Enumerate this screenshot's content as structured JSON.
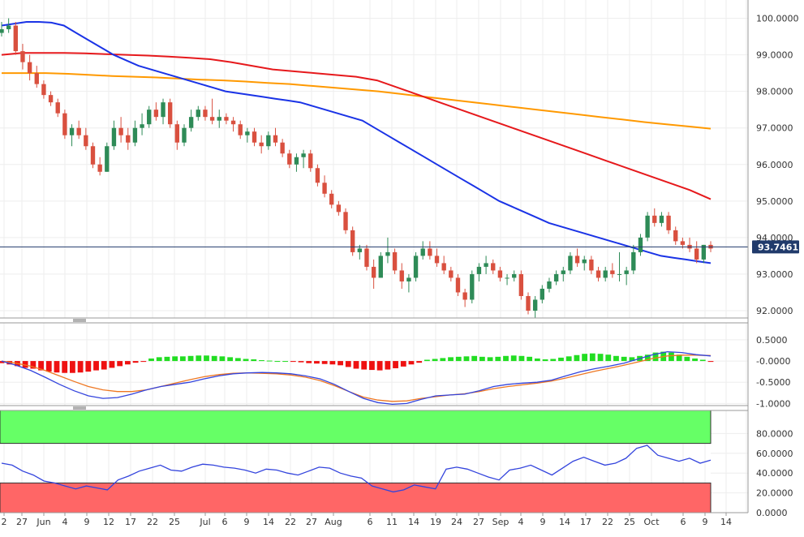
{
  "chart_data": {
    "type": "candlestick",
    "instrument_price_label": "93.7461",
    "current_price": 93.7461,
    "colors": {
      "up": "#2e8b57",
      "down": "#d9503f",
      "sma_fast": "#1a33e6",
      "sma_mid": "#e6191c",
      "sma_slow": "#ff9900",
      "price_line": "#203a6b",
      "label_bg": "#203a6b",
      "macd_pos": "#22dd22",
      "macd_neg": "#ee1111",
      "macd_line": "#3344dd",
      "macd_signal": "#ee7722",
      "rsi_overbought": "#66ff66",
      "rsi_oversold": "#ff6666",
      "rsi_line": "#3344dd"
    },
    "price_axis": {
      "range": [
        91.8,
        100.5
      ],
      "ticks": [
        "92.0000",
        "93.0000",
        "94.0000",
        "95.0000",
        "96.0000",
        "97.0000",
        "98.0000",
        "99.0000",
        "100.0000"
      ]
    },
    "x_axis": {
      "ticks": [
        "2",
        "27",
        "Jun",
        "4",
        "9",
        "12",
        "17",
        "22",
        "25",
        "Jul",
        "6",
        "9",
        "14",
        "22",
        "27",
        "Aug",
        "6",
        "11",
        "14",
        "19",
        "24",
        "27",
        "Sep",
        "4",
        "9",
        "14",
        "17",
        "22",
        "25",
        "Oct",
        "6",
        "9",
        "14"
      ]
    },
    "candles": [
      [
        99.6,
        99.9,
        99.5,
        99.7
      ],
      [
        99.7,
        100.0,
        99.6,
        99.8
      ],
      [
        99.8,
        99.9,
        99.0,
        99.1
      ],
      [
        99.1,
        99.3,
        98.6,
        98.8
      ],
      [
        98.8,
        99.0,
        98.3,
        98.5
      ],
      [
        98.5,
        98.7,
        98.1,
        98.2
      ],
      [
        98.2,
        98.3,
        97.8,
        97.9
      ],
      [
        97.9,
        98.0,
        97.6,
        97.7
      ],
      [
        97.7,
        97.8,
        97.3,
        97.4
      ],
      [
        97.4,
        97.5,
        96.7,
        96.8
      ],
      [
        96.8,
        97.1,
        96.5,
        97.0
      ],
      [
        97.0,
        97.2,
        96.7,
        96.8
      ],
      [
        96.8,
        97.0,
        96.4,
        96.5
      ],
      [
        96.5,
        96.6,
        95.9,
        96.0
      ],
      [
        96.0,
        96.2,
        95.7,
        95.8
      ],
      [
        95.8,
        96.6,
        95.8,
        96.5
      ],
      [
        96.5,
        97.2,
        96.4,
        97.0
      ],
      [
        97.0,
        97.3,
        96.6,
        96.8
      ],
      [
        96.8,
        97.0,
        96.4,
        96.6
      ],
      [
        96.6,
        97.2,
        96.5,
        97.0
      ],
      [
        97.0,
        97.4,
        96.8,
        97.1
      ],
      [
        97.1,
        97.6,
        97.0,
        97.5
      ],
      [
        97.5,
        97.7,
        97.2,
        97.3
      ],
      [
        97.3,
        97.8,
        97.1,
        97.7
      ],
      [
        97.7,
        97.8,
        97.0,
        97.1
      ],
      [
        97.1,
        97.2,
        96.4,
        96.6
      ],
      [
        96.6,
        97.1,
        96.5,
        97.0
      ],
      [
        97.0,
        97.5,
        96.9,
        97.3
      ],
      [
        97.3,
        97.6,
        97.2,
        97.5
      ],
      [
        97.5,
        97.6,
        97.2,
        97.3
      ],
      [
        97.3,
        97.8,
        97.1,
        97.2
      ],
      [
        97.2,
        97.5,
        97.0,
        97.3
      ],
      [
        97.3,
        97.4,
        97.1,
        97.2
      ],
      [
        97.2,
        97.3,
        96.9,
        97.1
      ],
      [
        97.1,
        97.2,
        96.7,
        96.8
      ],
      [
        96.8,
        97.0,
        96.6,
        96.9
      ],
      [
        96.9,
        97.0,
        96.5,
        96.6
      ],
      [
        96.6,
        96.8,
        96.3,
        96.5
      ],
      [
        96.5,
        96.9,
        96.4,
        96.8
      ],
      [
        96.8,
        97.0,
        96.5,
        96.6
      ],
      [
        96.6,
        96.7,
        96.2,
        96.3
      ],
      [
        96.3,
        96.4,
        95.9,
        96.0
      ],
      [
        96.0,
        96.3,
        95.8,
        96.2
      ],
      [
        96.2,
        96.4,
        95.9,
        96.3
      ],
      [
        96.3,
        96.4,
        95.8,
        95.9
      ],
      [
        95.9,
        96.0,
        95.4,
        95.5
      ],
      [
        95.5,
        95.7,
        95.1,
        95.2
      ],
      [
        95.2,
        95.3,
        94.8,
        94.9
      ],
      [
        94.9,
        95.0,
        94.6,
        94.7
      ],
      [
        94.7,
        94.8,
        94.1,
        94.2
      ],
      [
        94.2,
        94.3,
        93.5,
        93.6
      ],
      [
        93.6,
        93.8,
        93.4,
        93.7
      ],
      [
        93.7,
        93.8,
        93.1,
        93.2
      ],
      [
        93.2,
        93.4,
        92.6,
        92.9
      ],
      [
        92.9,
        93.6,
        92.9,
        93.5
      ],
      [
        93.5,
        94.0,
        93.3,
        93.6
      ],
      [
        93.6,
        93.7,
        93.0,
        93.1
      ],
      [
        93.1,
        93.3,
        92.6,
        92.8
      ],
      [
        92.8,
        93.0,
        92.5,
        92.9
      ],
      [
        92.9,
        93.6,
        92.8,
        93.5
      ],
      [
        93.5,
        93.9,
        93.4,
        93.7
      ],
      [
        93.7,
        93.9,
        93.4,
        93.5
      ],
      [
        93.5,
        93.7,
        93.2,
        93.3
      ],
      [
        93.3,
        93.5,
        93.0,
        93.1
      ],
      [
        93.1,
        93.2,
        92.8,
        92.9
      ],
      [
        92.9,
        93.0,
        92.4,
        92.5
      ],
      [
        92.5,
        92.6,
        92.1,
        92.3
      ],
      [
        92.3,
        93.1,
        92.2,
        93.0
      ],
      [
        93.0,
        93.3,
        92.8,
        93.2
      ],
      [
        93.2,
        93.5,
        93.0,
        93.3
      ],
      [
        93.3,
        93.4,
        93.0,
        93.1
      ],
      [
        93.1,
        93.2,
        92.8,
        92.9
      ],
      [
        92.9,
        93.0,
        92.7,
        92.9
      ],
      [
        92.9,
        93.1,
        92.8,
        93.0
      ],
      [
        93.0,
        93.1,
        92.3,
        92.4
      ],
      [
        92.4,
        92.5,
        91.9,
        92.0
      ],
      [
        92.0,
        92.4,
        91.8,
        92.3
      ],
      [
        92.3,
        92.7,
        92.2,
        92.6
      ],
      [
        92.6,
        92.9,
        92.5,
        92.8
      ],
      [
        92.8,
        93.1,
        92.7,
        93.0
      ],
      [
        93.0,
        93.2,
        92.8,
        93.1
      ],
      [
        93.1,
        93.6,
        93.0,
        93.5
      ],
      [
        93.5,
        93.7,
        93.2,
        93.3
      ],
      [
        93.3,
        93.5,
        93.1,
        93.4
      ],
      [
        93.4,
        93.5,
        93.0,
        93.1
      ],
      [
        93.1,
        93.2,
        92.8,
        92.9
      ],
      [
        92.9,
        93.2,
        92.8,
        93.1
      ],
      [
        93.1,
        93.3,
        92.9,
        93.0
      ],
      [
        93.0,
        93.6,
        92.8,
        93.0
      ],
      [
        93.0,
        93.2,
        92.7,
        93.1
      ],
      [
        93.1,
        93.8,
        93.0,
        93.6
      ],
      [
        93.6,
        94.1,
        93.5,
        94.0
      ],
      [
        94.0,
        94.7,
        93.9,
        94.6
      ],
      [
        94.6,
        94.8,
        94.3,
        94.4
      ],
      [
        94.4,
        94.7,
        94.3,
        94.6
      ],
      [
        94.6,
        94.7,
        94.1,
        94.2
      ],
      [
        94.2,
        94.3,
        93.8,
        93.9
      ],
      [
        93.9,
        94.0,
        93.7,
        93.8
      ],
      [
        93.8,
        94.0,
        93.6,
        93.7
      ],
      [
        93.7,
        93.9,
        93.3,
        93.4
      ],
      [
        93.4,
        93.8,
        93.3,
        93.8
      ],
      [
        93.8,
        93.9,
        93.6,
        93.7
      ]
    ],
    "sma_fast": [
      99.8,
      99.85,
      99.9,
      99.9,
      99.88,
      99.8,
      99.6,
      99.4,
      99.2,
      99.0,
      98.85,
      98.7,
      98.6,
      98.5,
      98.4,
      98.3,
      98.2,
      98.1,
      98.0,
      97.95,
      97.9,
      97.85,
      97.8,
      97.75,
      97.7,
      97.6,
      97.5,
      97.4,
      97.3,
      97.2,
      97.0,
      96.8,
      96.6,
      96.4,
      96.2,
      96.0,
      95.8,
      95.6,
      95.4,
      95.2,
      95.0,
      94.85,
      94.7,
      94.55,
      94.4,
      94.3,
      94.2,
      94.1,
      94.0,
      93.9,
      93.8,
      93.7,
      93.6,
      93.5,
      93.45,
      93.4,
      93.35,
      93.3
    ],
    "sma_mid": [
      99.0,
      99.05,
      99.05,
      99.05,
      99.04,
      99.02,
      99.0,
      98.98,
      98.95,
      98.92,
      98.88,
      98.8,
      98.7,
      98.6,
      98.55,
      98.5,
      98.45,
      98.4,
      98.3,
      98.1,
      97.9,
      97.7,
      97.5,
      97.3,
      97.1,
      96.9,
      96.7,
      96.5,
      96.3,
      96.1,
      95.9,
      95.7,
      95.5,
      95.3,
      95.05
    ],
    "sma_slow": [
      98.5,
      98.5,
      98.5,
      98.48,
      98.45,
      98.42,
      98.4,
      98.38,
      98.35,
      98.32,
      98.3,
      98.27,
      98.23,
      98.2,
      98.15,
      98.1,
      98.05,
      98.0,
      97.93,
      97.86,
      97.79,
      97.72,
      97.65,
      97.58,
      97.51,
      97.44,
      97.37,
      97.3,
      97.23,
      97.16,
      97.1,
      97.04,
      96.98
    ],
    "macd_axis": {
      "range": [
        -1.05,
        0.9
      ],
      "ticks": [
        "0.5000",
        "-0.0000",
        "-0.5000",
        "-1.0000"
      ]
    },
    "macd_hist": [
      -0.05,
      -0.08,
      -0.12,
      -0.16,
      -0.18,
      -0.22,
      -0.25,
      -0.27,
      -0.28,
      -0.28,
      -0.27,
      -0.25,
      -0.22,
      -0.2,
      -0.16,
      -0.12,
      -0.08,
      -0.04,
      -0.02,
      0.06,
      0.09,
      0.1,
      0.11,
      0.11,
      0.12,
      0.13,
      0.13,
      0.12,
      0.11,
      0.09,
      0.07,
      0.05,
      0.04,
      0.02,
      0.01,
      0.0,
      0.0,
      -0.02,
      -0.03,
      -0.05,
      -0.06,
      -0.07,
      -0.08,
      -0.1,
      -0.14,
      -0.18,
      -0.2,
      -0.21,
      -0.22,
      -0.2,
      -0.17,
      -0.13,
      -0.08,
      -0.04,
      0.03,
      0.05,
      0.07,
      0.09,
      0.1,
      0.11,
      0.12,
      0.1,
      0.09,
      0.1,
      0.12,
      0.13,
      0.12,
      0.1,
      0.06,
      0.04,
      0.05,
      0.08,
      0.11,
      0.14,
      0.17,
      0.18,
      0.17,
      0.15,
      0.12,
      0.1,
      0.09,
      0.12,
      0.15,
      0.2,
      0.22,
      0.2,
      0.15,
      0.1,
      0.06,
      0.03,
      -0.02
    ],
    "macd_line": [
      0.0,
      -0.1,
      -0.22,
      -0.38,
      -0.55,
      -0.7,
      -0.82,
      -0.88,
      -0.86,
      -0.78,
      -0.68,
      -0.6,
      -0.55,
      -0.5,
      -0.42,
      -0.35,
      -0.3,
      -0.28,
      -0.27,
      -0.28,
      -0.3,
      -0.35,
      -0.42,
      -0.55,
      -0.72,
      -0.88,
      -0.98,
      -1.02,
      -1.0,
      -0.9,
      -0.82,
      -0.8,
      -0.78,
      -0.7,
      -0.6,
      -0.55,
      -0.52,
      -0.5,
      -0.45,
      -0.35,
      -0.25,
      -0.18,
      -0.12,
      -0.05,
      0.05,
      0.15,
      0.22,
      0.2,
      0.15,
      0.12
    ],
    "macd_signal": [
      0.0,
      -0.05,
      -0.12,
      -0.22,
      -0.35,
      -0.48,
      -0.6,
      -0.68,
      -0.72,
      -0.72,
      -0.68,
      -0.6,
      -0.52,
      -0.44,
      -0.37,
      -0.32,
      -0.29,
      -0.28,
      -0.29,
      -0.3,
      -0.33,
      -0.38,
      -0.46,
      -0.58,
      -0.72,
      -0.85,
      -0.92,
      -0.95,
      -0.94,
      -0.88,
      -0.84,
      -0.8,
      -0.77,
      -0.72,
      -0.65,
      -0.6,
      -0.56,
      -0.52,
      -0.47,
      -0.4,
      -0.32,
      -0.24,
      -0.17,
      -0.1,
      -0.02,
      0.06,
      0.12,
      0.14,
      0.14,
      0.13
    ],
    "rsi_axis": {
      "range": [
        0,
        100
      ],
      "ticks": [
        "80.0000",
        "60.0000",
        "40.0000",
        "20.0000",
        "0.0000"
      ],
      "overbought": 70,
      "oversold": 30
    },
    "rsi": [
      50,
      48,
      42,
      38,
      32,
      30,
      27,
      24,
      27,
      25,
      23,
      33,
      37,
      42,
      45,
      48,
      43,
      42,
      46,
      49,
      48,
      46,
      45,
      43,
      40,
      44,
      43,
      40,
      38,
      42,
      46,
      45,
      40,
      37,
      35,
      27,
      24,
      21,
      23,
      28,
      26,
      24,
      44,
      46,
      44,
      40,
      36,
      33,
      43,
      45,
      48,
      43,
      38,
      45,
      52,
      56,
      52,
      48,
      50,
      55,
      65,
      68,
      58,
      55,
      52,
      55,
      50,
      53
    ]
  }
}
